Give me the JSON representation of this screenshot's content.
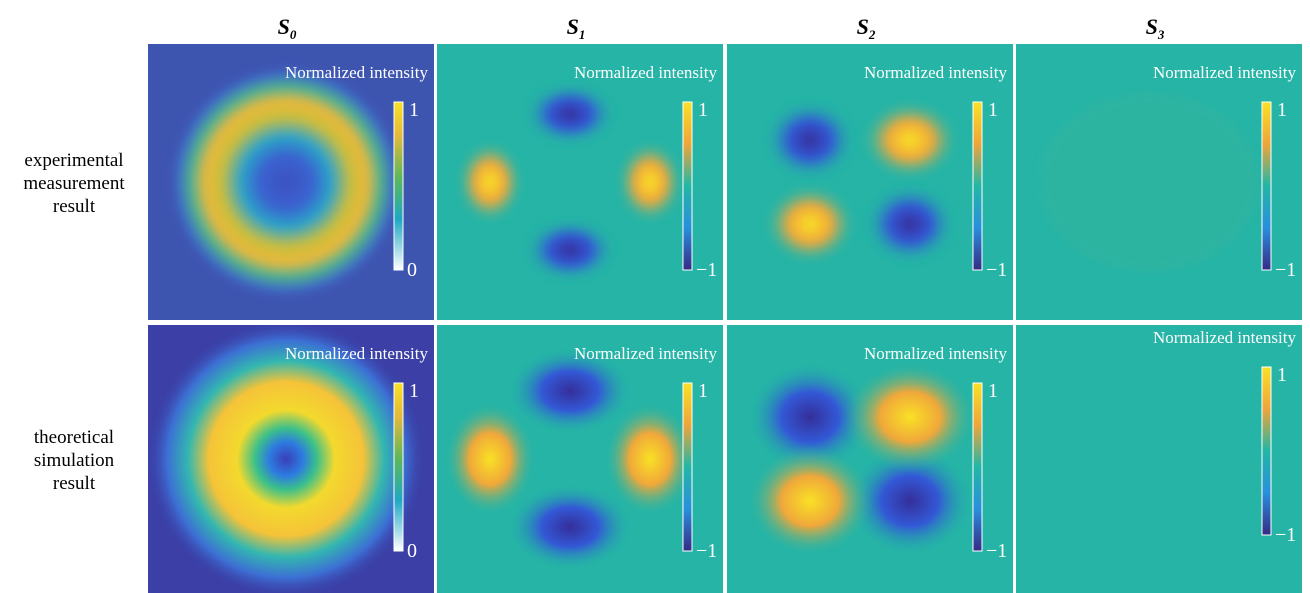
{
  "columns": [
    {
      "symbol": "S",
      "subscript": "0"
    },
    {
      "symbol": "S",
      "subscript": "1"
    },
    {
      "symbol": "S",
      "subscript": "2"
    },
    {
      "symbol": "S",
      "subscript": "3"
    }
  ],
  "rows": [
    {
      "label": [
        "experimental",
        "measurement",
        "result"
      ],
      "panels": [
        {
          "label": "Normalized intensity",
          "colorbar": {
            "max": "1",
            "min": "0"
          }
        },
        {
          "label": "Normalized intensity",
          "colorbar": {
            "max": "1",
            "min": "−1"
          }
        },
        {
          "label": "Normalized intensity",
          "colorbar": {
            "max": "1",
            "min": "−1"
          }
        },
        {
          "label": "Normalized intensity",
          "colorbar": {
            "max": "1",
            "min": "−1"
          }
        }
      ]
    },
    {
      "label": [
        "theoretical",
        "simulation",
        "result"
      ],
      "panels": [
        {
          "label": "Normalized intensity",
          "colorbar": {
            "max": "1",
            "min": "0"
          }
        },
        {
          "label": "Normalized intensity",
          "colorbar": {
            "max": "1",
            "min": "−1"
          }
        },
        {
          "label": "Normalized intensity",
          "colorbar": {
            "max": "1",
            "min": "−1"
          }
        },
        {
          "label": "Normalized intensity",
          "colorbar": {
            "max": "1",
            "min": "−1"
          }
        }
      ]
    }
  ]
}
